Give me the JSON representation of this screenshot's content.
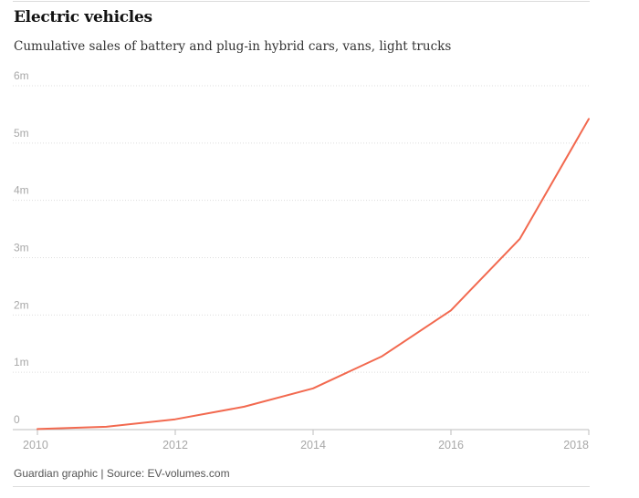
{
  "chart_data": {
    "type": "line",
    "title": "Electric vehicles",
    "subtitle": "Cumulative sales of battery and plug-in hybrid cars, vans, light trucks",
    "source": "Guardian graphic | Source: EV-volumes.com",
    "x": [
      2010,
      2011,
      2012,
      2013,
      2014,
      2015,
      2016,
      2017,
      2018
    ],
    "series": [
      {
        "values": [
          0.01,
          0.05,
          0.18,
          0.4,
          0.72,
          1.28,
          2.08,
          3.33,
          5.42
        ]
      }
    ],
    "xlim": [
      2010,
      2018
    ],
    "ylim": [
      0,
      6
    ],
    "x_ticks": [
      "2010",
      "2012",
      "2014",
      "2016",
      "2018"
    ],
    "y_ticks": [
      "0",
      "1m",
      "2m",
      "3m",
      "4m",
      "5m",
      "6m"
    ],
    "grid": true,
    "line_color": "#f2694f"
  }
}
